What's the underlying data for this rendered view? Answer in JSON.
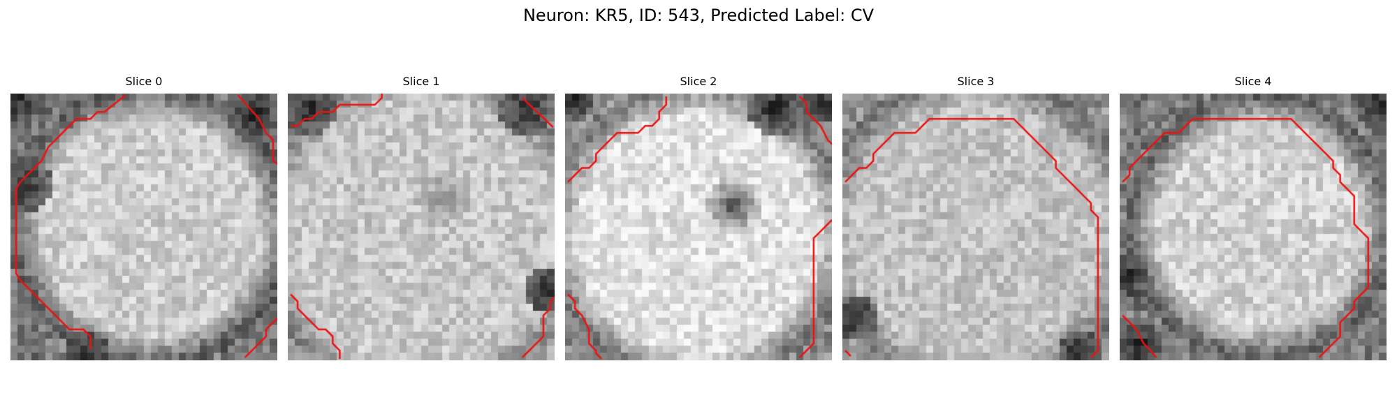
{
  "figure": {
    "title": "Neuron: KR5, ID: 543, Predicted Label: CV"
  },
  "colors": {
    "contour": "#ee1111",
    "image_colormap": "grayscale"
  },
  "slices": [
    {
      "title": "Slice 0",
      "image_icon": "grayscale-microscopy-slice",
      "contour_icon": "red-segmentation-contour"
    },
    {
      "title": "Slice 1",
      "image_icon": "grayscale-microscopy-slice",
      "contour_icon": "red-segmentation-contour"
    },
    {
      "title": "Slice 2",
      "image_icon": "grayscale-microscopy-slice",
      "contour_icon": "red-segmentation-contour"
    },
    {
      "title": "Slice 3",
      "image_icon": "grayscale-microscopy-slice",
      "contour_icon": "red-segmentation-contour"
    },
    {
      "title": "Slice 4",
      "image_icon": "grayscale-microscopy-slice",
      "contour_icon": "red-segmentation-contour"
    }
  ]
}
